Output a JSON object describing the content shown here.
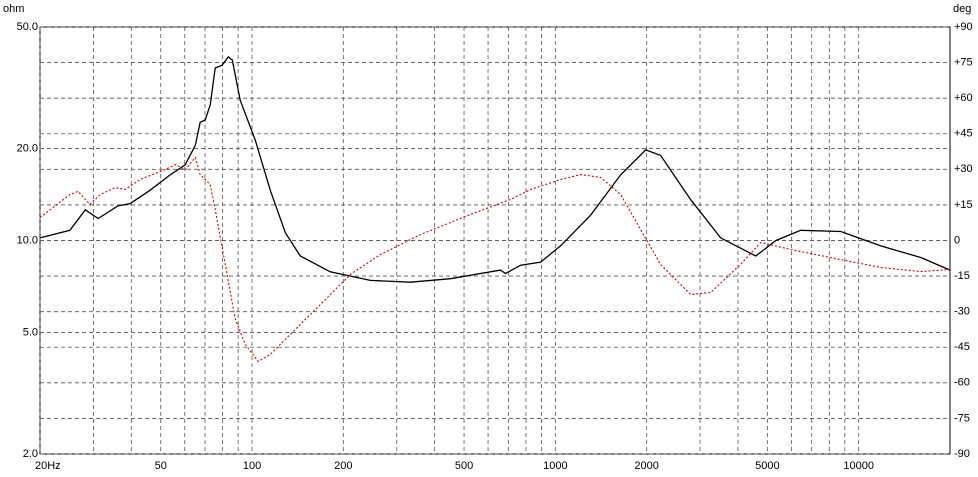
{
  "chart_data": {
    "type": "line",
    "ylabel": "ohm",
    "y2label": "deg",
    "xscale": "log",
    "yscale": "log",
    "grid": true,
    "xlim": [
      20,
      20000
    ],
    "ylim": [
      2,
      50
    ],
    "y2lim": [
      -90,
      90
    ],
    "xticks": [
      {
        "value": 20,
        "label": "20Hz"
      },
      50,
      100,
      200,
      500,
      1000,
      2000,
      5000,
      10000
    ],
    "xminor": [
      30,
      40,
      60,
      70,
      80,
      90,
      300,
      400,
      600,
      700,
      800,
      900,
      3000,
      4000,
      6000,
      7000,
      8000,
      9000
    ],
    "yticks": [
      {
        "value": 2,
        "label": "2.0"
      },
      {
        "value": 5,
        "label": "5.0"
      },
      {
        "value": 10,
        "label": "10.0"
      },
      {
        "value": 20,
        "label": "20.0"
      },
      {
        "value": 50,
        "label": "50.0"
      }
    ],
    "y2ticks": [
      -90,
      -75,
      -60,
      -45,
      -30,
      -15,
      0,
      {
        "value": 15,
        "label": "+15"
      },
      {
        "value": 30,
        "label": "+30"
      },
      {
        "value": 45,
        "label": "+45"
      },
      {
        "value": 60,
        "label": "+60"
      },
      {
        "value": 75,
        "label": "+75"
      },
      {
        "value": 90,
        "label": "+90"
      }
    ],
    "series": [
      {
        "color": "#000000",
        "style": "solid",
        "x": [
          20,
          25.1,
          28.2,
          31.1,
          36.2,
          39.6,
          46.1,
          53.7,
          60.2,
          65,
          67.5,
          70.1,
          72.8,
          75.6,
          79.7,
          83.5,
          86.1,
          91.4,
          102.5,
          114.9,
          128.8,
          144.3,
          181,
          245.6,
          332.8,
          451,
          659,
          685,
          768,
          894,
          1040,
          1307,
          1641,
          1985,
          2223,
          2793,
          3508,
          4580,
          5333,
          6440,
          8730,
          11830,
          16020,
          20000
        ],
        "values": [
          10.2,
          10.8,
          12.6,
          11.8,
          13.0,
          13.2,
          14.6,
          16.4,
          17.7,
          20.5,
          24.4,
          24.8,
          27.8,
          36.7,
          37.5,
          39.9,
          39.0,
          28.8,
          21.3,
          14.6,
          10.6,
          8.9,
          7.9,
          7.4,
          7.3,
          7.5,
          8.0,
          7.8,
          8.3,
          8.5,
          9.6,
          12.1,
          16.4,
          19.8,
          19.0,
          13.6,
          10.2,
          8.9,
          10.0,
          10.8,
          10.7,
          9.6,
          8.8,
          8.0
        ]
      },
      {
        "color": "#cc0000",
        "style": "dotted",
        "axis": "y2",
        "x": [
          20,
          25.1,
          26.7,
          29.2,
          31.6,
          35.4,
          38.2,
          42.8,
          51.7,
          55.8,
          60.2,
          65,
          67.5,
          72.8,
          75.6,
          81.6,
          88.0,
          95,
          104.9,
          114.9,
          133.7,
          167.9,
          211,
          265,
          359,
          525,
          711,
          829,
          1040,
          1211,
          1410,
          1641,
          1910,
          2223,
          2793,
          3251,
          4085,
          4756,
          5970,
          8090,
          11830,
          16020,
          20000
        ],
        "values": [
          9.7,
          19.4,
          20.7,
          15.2,
          19.4,
          22.3,
          21.5,
          25.7,
          29.9,
          32,
          29.9,
          35,
          27.8,
          23.6,
          13.1,
          -10,
          -33,
          -43.8,
          -51,
          -48,
          -39.6,
          -27,
          -14.3,
          -5.9,
          2.5,
          11,
          17.3,
          21.5,
          25.7,
          27.8,
          26.6,
          19.4,
          4.6,
          -10.1,
          -22.8,
          -21.9,
          -10,
          -0.8,
          -3.8,
          -7.2,
          -11.4,
          -13.1,
          -12.2
        ]
      }
    ]
  }
}
